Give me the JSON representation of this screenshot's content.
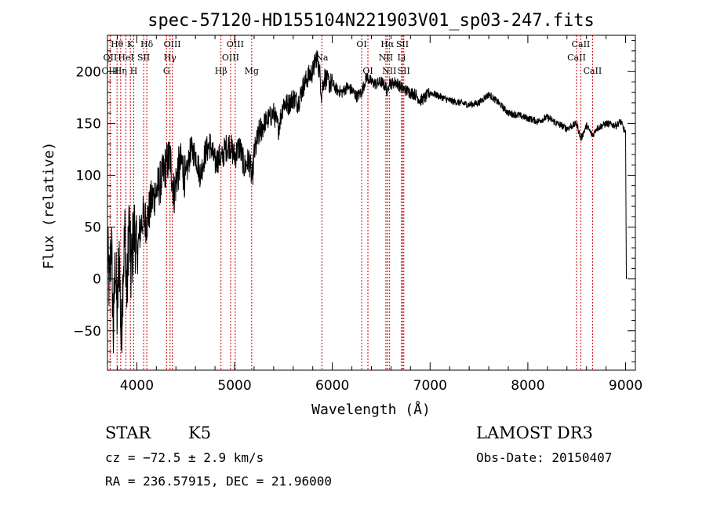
{
  "chart_data": {
    "type": "line",
    "title": "spec-57120-HD155104N221903V01_sp03-247.fits",
    "xlabel": "Wavelength (Å)",
    "ylabel": "Flux (relative)",
    "xlim": [
      3700,
      9100
    ],
    "ylim": [
      -88,
      235
    ],
    "x_ticks": [
      4000,
      5000,
      6000,
      7000,
      8000,
      9000
    ],
    "y_ticks": [
      -50,
      0,
      50,
      100,
      150,
      200
    ],
    "series": [
      {
        "name": "spectrum",
        "x": [
          3700,
          3720,
          3740,
          3760,
          3780,
          3800,
          3820,
          3840,
          3860,
          3880,
          3900,
          3920,
          3940,
          3960,
          3980,
          4000,
          4030,
          4060,
          4100,
          4150,
          4200,
          4250,
          4300,
          4340,
          4380,
          4420,
          4460,
          4500,
          4550,
          4600,
          4650,
          4700,
          4750,
          4800,
          4850,
          4870,
          4900,
          4950,
          5000,
          5050,
          5100,
          5150,
          5180,
          5200,
          5250,
          5300,
          5350,
          5400,
          5450,
          5500,
          5550,
          5600,
          5650,
          5700,
          5750,
          5800,
          5840,
          5870,
          5890,
          5900,
          5920,
          5950,
          6000,
          6050,
          6100,
          6150,
          6200,
          6250,
          6300,
          6350,
          6400,
          6450,
          6500,
          6550,
          6563,
          6580,
          6600,
          6650,
          6700,
          6750,
          6800,
          6850,
          6900,
          6950,
          7000,
          7100,
          7200,
          7300,
          7400,
          7500,
          7600,
          7700,
          7800,
          7900,
          8000,
          8100,
          8200,
          8300,
          8400,
          8500,
          8542,
          8600,
          8662,
          8700,
          8800,
          8900,
          8950,
          9000,
          9010
        ],
        "values": [
          25,
          -10,
          40,
          -55,
          20,
          -40,
          30,
          -62,
          10,
          45,
          -20,
          60,
          5,
          35,
          50,
          20,
          45,
          60,
          55,
          75,
          85,
          95,
          110,
          118,
          82,
          105,
          112,
          95,
          125,
          120,
          100,
          122,
          130,
          112,
          118,
          115,
          125,
          130,
          118,
          128,
          108,
          115,
          95,
          120,
          140,
          150,
          155,
          160,
          145,
          170,
          168,
          175,
          170,
          185,
          195,
          200,
          215,
          200,
          178,
          185,
          195,
          190,
          188,
          182,
          180,
          185,
          182,
          176,
          180,
          195,
          190,
          188,
          190,
          185,
          178,
          192,
          188,
          190,
          185,
          182,
          180,
          178,
          172,
          175,
          180,
          176,
          172,
          170,
          168,
          170,
          178,
          170,
          160,
          158,
          155,
          152,
          156,
          150,
          145,
          150,
          135,
          148,
          138,
          145,
          150,
          148,
          152,
          140,
          0
        ]
      }
    ],
    "spectral_lines": [
      {
        "label": "Hθ",
        "wl": 3798,
        "row": 1
      },
      {
        "label": "OII",
        "wl": 3727,
        "row": 2
      },
      {
        "label": "OIII",
        "wl": 3728,
        "row": 3
      },
      {
        "label": "K",
        "wl": 3934,
        "row": 1
      },
      {
        "label": "HeI",
        "wl": 3889,
        "row": 2
      },
      {
        "label": "Hη",
        "wl": 3835,
        "row": 3
      },
      {
        "label": "H",
        "wl": 3969,
        "row": 3
      },
      {
        "label": "Hδ",
        "wl": 4102,
        "row": 1
      },
      {
        "label": "SII",
        "wl": 4070,
        "row": 2
      },
      {
        "label": "OIII",
        "wl": 4363,
        "row": 1
      },
      {
        "label": "Hγ",
        "wl": 4340,
        "row": 2
      },
      {
        "label": "G",
        "wl": 4304,
        "row": 3
      },
      {
        "label": "OIII",
        "wl": 5007,
        "row": 1
      },
      {
        "label": "OIII",
        "wl": 4959,
        "row": 2
      },
      {
        "label": "Hβ",
        "wl": 4861,
        "row": 3
      },
      {
        "label": "Mg",
        "wl": 5175,
        "row": 3
      },
      {
        "label": "Na",
        "wl": 5893,
        "row": 2
      },
      {
        "label": "OI",
        "wl": 6300,
        "row": 1
      },
      {
        "label": "OI",
        "wl": 6364,
        "row": 3
      },
      {
        "label": "Hα",
        "wl": 6563,
        "row": 1
      },
      {
        "label": "SII",
        "wl": 6717,
        "row": 1
      },
      {
        "label": "NII",
        "wl": 6548,
        "row": 2
      },
      {
        "label": "Li",
        "wl": 6708,
        "row": 2
      },
      {
        "label": "NII",
        "wl": 6583,
        "row": 3
      },
      {
        "label": "SII",
        "wl": 6731,
        "row": 3
      },
      {
        "label": "CaII",
        "wl": 8542,
        "row": 1
      },
      {
        "label": "CaII",
        "wl": 8498,
        "row": 2
      },
      {
        "label": "CaII",
        "wl": 8662,
        "row": 3
      }
    ]
  },
  "info": {
    "object_type": "STAR",
    "subclass": "K5",
    "survey": "LAMOST DR3",
    "cz": "cz = −72.5 ± 2.9 km/s",
    "obs_date": "Obs-Date: 20150407",
    "coords": "RA = 236.57915, DEC =  21.96000"
  },
  "colors": {
    "line_marker": "#cc0000",
    "spectrum": "#000000",
    "axes": "#000000"
  }
}
